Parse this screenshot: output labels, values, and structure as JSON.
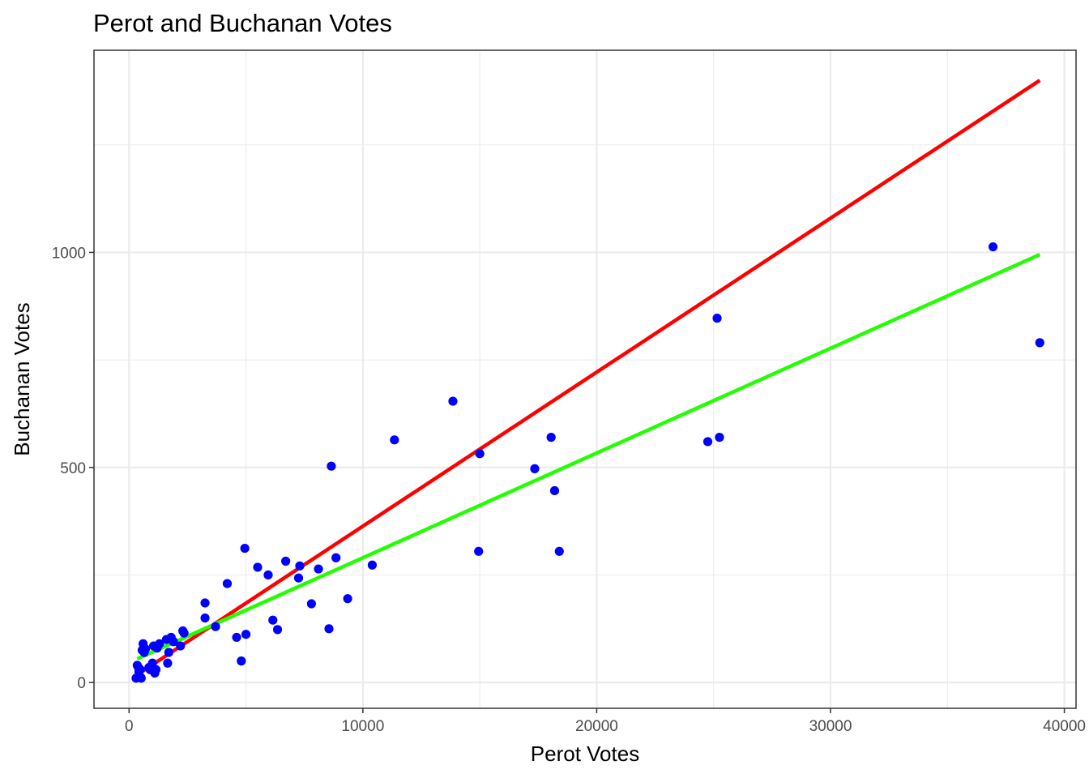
{
  "chart_data": {
    "type": "scatter",
    "title": "Perot and Buchanan Votes",
    "xlabel": "Perot Votes",
    "ylabel": "Buchanan Votes",
    "xlim": [
      -1500,
      40500
    ],
    "ylim": [
      -60,
      1470
    ],
    "x_ticks": [
      0,
      10000,
      20000,
      30000,
      40000
    ],
    "y_ticks": [
      0,
      500,
      1000
    ],
    "grid": true,
    "point_color": "#0000ff",
    "points": [
      [
        300,
        10
      ],
      [
        350,
        40
      ],
      [
        400,
        35
      ],
      [
        420,
        25
      ],
      [
        480,
        30
      ],
      [
        500,
        12
      ],
      [
        520,
        10
      ],
      [
        560,
        75
      ],
      [
        600,
        90
      ],
      [
        650,
        70
      ],
      [
        700,
        78
      ],
      [
        850,
        35
      ],
      [
        900,
        30
      ],
      [
        1000,
        45
      ],
      [
        1050,
        85
      ],
      [
        1100,
        22
      ],
      [
        1150,
        30
      ],
      [
        1200,
        80
      ],
      [
        1300,
        90
      ],
      [
        1600,
        100
      ],
      [
        1650,
        45
      ],
      [
        1700,
        70
      ],
      [
        1800,
        105
      ],
      [
        1900,
        95
      ],
      [
        2200,
        85
      ],
      [
        2300,
        120
      ],
      [
        2350,
        115
      ],
      [
        3250,
        185
      ],
      [
        3250,
        150
      ],
      [
        3700,
        130
      ],
      [
        4200,
        230
      ],
      [
        4600,
        105
      ],
      [
        4800,
        50
      ],
      [
        4950,
        312
      ],
      [
        5000,
        112
      ],
      [
        5500,
        268
      ],
      [
        5950,
        250
      ],
      [
        6150,
        145
      ],
      [
        6350,
        123
      ],
      [
        6700,
        282
      ],
      [
        7250,
        243
      ],
      [
        7300,
        271
      ],
      [
        7800,
        183
      ],
      [
        8100,
        264
      ],
      [
        8550,
        125
      ],
      [
        8650,
        503
      ],
      [
        8850,
        290
      ],
      [
        9350,
        195
      ],
      [
        10400,
        273
      ],
      [
        11350,
        564
      ],
      [
        13850,
        654
      ],
      [
        14950,
        305
      ],
      [
        15000,
        532
      ],
      [
        17350,
        497
      ],
      [
        18050,
        570
      ],
      [
        18200,
        446
      ],
      [
        18400,
        305
      ],
      [
        24750,
        560
      ],
      [
        25150,
        847
      ],
      [
        25250,
        570
      ],
      [
        36950,
        1013
      ],
      [
        38950,
        790
      ]
    ],
    "series": [
      {
        "color": "#ff0000",
        "x": [
          350,
          38950
        ],
        "y": [
          18,
          1400
        ]
      },
      {
        "color": "#22ff00",
        "x": [
          350,
          38950
        ],
        "y": [
          55,
          995
        ]
      }
    ]
  }
}
